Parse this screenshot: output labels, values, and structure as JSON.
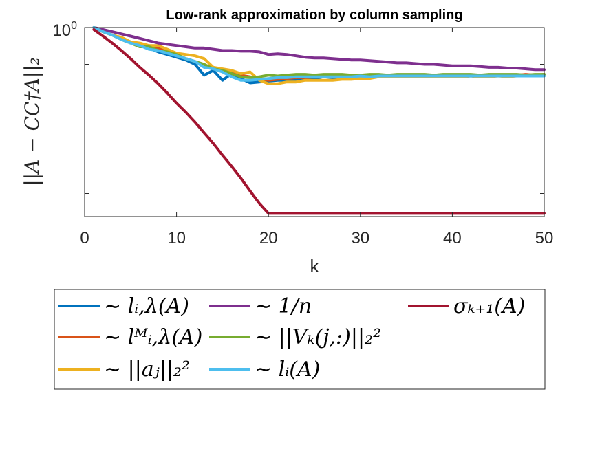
{
  "chart_data": {
    "type": "line",
    "title": "Low-rank approximation by column sampling",
    "xlabel": "k",
    "ylabel": "||A − CC†A||₂",
    "xlim": [
      0,
      50
    ],
    "ylim": [
      0.1,
      1.0
    ],
    "yscale": "log",
    "xticks": [
      0,
      10,
      20,
      30,
      40,
      50
    ],
    "xtick_labels": [
      "0",
      "10",
      "20",
      "30",
      "40",
      "50"
    ],
    "ytick_label_base": "10",
    "ytick_label_exp": "0",
    "legend_position": "below",
    "series": [
      {
        "name": "~ l_{i,λ}(A)",
        "legend_label": "∼ lᵢ,λ(A)",
        "color": "#0072BD",
        "x": [
          1,
          2,
          3,
          4,
          5,
          6,
          7,
          8,
          9,
          10,
          11,
          12,
          13,
          14,
          15,
          16,
          17,
          18,
          19,
          20,
          21,
          22,
          23,
          24,
          25,
          26,
          27,
          28,
          29,
          30,
          31,
          32,
          33,
          34,
          35,
          36,
          37,
          38,
          39,
          40,
          41,
          42,
          43,
          44,
          45,
          46,
          47,
          48,
          49,
          50
        ],
        "y": [
          1.0,
          0.96,
          0.93,
          0.9,
          0.87,
          0.85,
          0.82,
          0.79,
          0.77,
          0.75,
          0.73,
          0.7,
          0.63,
          0.66,
          0.6,
          0.64,
          0.61,
          0.585,
          0.59,
          0.595,
          0.6,
          0.6,
          0.6,
          0.61,
          0.61,
          0.62,
          0.615,
          0.62,
          0.62,
          0.62,
          0.62,
          0.62,
          0.62,
          0.62,
          0.62,
          0.62,
          0.62,
          0.625,
          0.62,
          0.625,
          0.62,
          0.625,
          0.62,
          0.625,
          0.625,
          0.625,
          0.625,
          0.625,
          0.625,
          0.63
        ]
      },
      {
        "name": "~ l^M_{i,λ}(A)",
        "legend_label": "∼ lᴹᵢ,λ(A)",
        "color": "#D95319",
        "x": [
          1,
          2,
          3,
          4,
          5,
          6,
          7,
          8,
          9,
          10,
          11,
          12,
          13,
          14,
          15,
          16,
          17,
          18,
          19,
          20,
          21,
          22,
          23,
          24,
          25,
          26,
          27,
          28,
          29,
          30,
          31,
          32,
          33,
          34,
          35,
          36,
          37,
          38,
          39,
          40,
          41,
          42,
          43,
          44,
          45,
          46,
          47,
          48,
          49,
          50
        ],
        "y": [
          1.0,
          0.96,
          0.93,
          0.9,
          0.87,
          0.85,
          0.84,
          0.82,
          0.79,
          0.76,
          0.74,
          0.72,
          0.69,
          0.67,
          0.655,
          0.645,
          0.63,
          0.62,
          0.61,
          0.6,
          0.605,
          0.61,
          0.615,
          0.615,
          0.62,
          0.62,
          0.62,
          0.62,
          0.62,
          0.62,
          0.62,
          0.625,
          0.62,
          0.625,
          0.625,
          0.625,
          0.625,
          0.625,
          0.625,
          0.625,
          0.625,
          0.625,
          0.625,
          0.63,
          0.63,
          0.63,
          0.63,
          0.635,
          0.63,
          0.635
        ]
      },
      {
        "name": "~ ||a_j||_2^2",
        "legend_label": "∼ ||aⱼ||₂²",
        "color": "#EDB120",
        "x": [
          1,
          2,
          3,
          4,
          5,
          6,
          7,
          8,
          9,
          10,
          11,
          12,
          13,
          14,
          15,
          16,
          17,
          18,
          19,
          20,
          21,
          22,
          23,
          24,
          25,
          26,
          27,
          28,
          29,
          30,
          31,
          32,
          33,
          34,
          35,
          36,
          37,
          38,
          39,
          40,
          41,
          42,
          43,
          44,
          45,
          46,
          47,
          48,
          49,
          50
        ],
        "y": [
          1.0,
          0.96,
          0.93,
          0.91,
          0.87,
          0.86,
          0.84,
          0.84,
          0.81,
          0.78,
          0.77,
          0.76,
          0.74,
          0.68,
          0.67,
          0.66,
          0.64,
          0.65,
          0.6,
          0.58,
          0.58,
          0.59,
          0.59,
          0.6,
          0.6,
          0.6,
          0.6,
          0.605,
          0.605,
          0.61,
          0.61,
          0.62,
          0.62,
          0.62,
          0.62,
          0.62,
          0.62,
          0.62,
          0.62,
          0.62,
          0.62,
          0.625,
          0.62,
          0.62,
          0.625,
          0.62,
          0.625,
          0.625,
          0.625,
          0.63
        ]
      },
      {
        "name": "~ 1/n",
        "legend_label": "∼ 1/n",
        "color": "#7E2F8E",
        "x": [
          1,
          2,
          3,
          4,
          5,
          6,
          7,
          8,
          9,
          10,
          11,
          12,
          13,
          14,
          15,
          16,
          17,
          18,
          19,
          20,
          21,
          22,
          23,
          24,
          25,
          26,
          27,
          28,
          29,
          30,
          31,
          32,
          33,
          34,
          35,
          36,
          37,
          38,
          39,
          40,
          41,
          42,
          43,
          44,
          45,
          46,
          47,
          48,
          49,
          50
        ],
        "y": [
          1.0,
          0.98,
          0.96,
          0.94,
          0.92,
          0.9,
          0.88,
          0.86,
          0.85,
          0.84,
          0.83,
          0.82,
          0.82,
          0.81,
          0.8,
          0.8,
          0.795,
          0.795,
          0.79,
          0.77,
          0.775,
          0.77,
          0.76,
          0.75,
          0.745,
          0.745,
          0.74,
          0.735,
          0.73,
          0.73,
          0.725,
          0.72,
          0.715,
          0.71,
          0.71,
          0.705,
          0.7,
          0.7,
          0.695,
          0.69,
          0.69,
          0.69,
          0.685,
          0.68,
          0.68,
          0.675,
          0.675,
          0.67,
          0.665,
          0.665
        ]
      },
      {
        "name": "~ ||V_k(j,:)||_2^2",
        "legend_label": "∼ ||Vₖ(j,:)||₂²",
        "color": "#77AC30",
        "x": [
          1,
          2,
          3,
          4,
          5,
          6,
          7,
          8,
          9,
          10,
          11,
          12,
          13,
          14,
          15,
          16,
          17,
          18,
          19,
          20,
          21,
          22,
          23,
          24,
          25,
          26,
          27,
          28,
          29,
          30,
          31,
          32,
          33,
          34,
          35,
          36,
          37,
          38,
          39,
          40,
          41,
          42,
          43,
          44,
          45,
          46,
          47,
          48,
          49,
          50
        ],
        "y": [
          1.0,
          0.96,
          0.93,
          0.89,
          0.86,
          0.83,
          0.83,
          0.8,
          0.79,
          0.77,
          0.74,
          0.72,
          0.7,
          0.67,
          0.66,
          0.64,
          0.62,
          0.615,
          0.62,
          0.63,
          0.625,
          0.63,
          0.635,
          0.635,
          0.63,
          0.635,
          0.635,
          0.635,
          0.63,
          0.63,
          0.635,
          0.635,
          0.63,
          0.635,
          0.635,
          0.635,
          0.635,
          0.63,
          0.635,
          0.635,
          0.635,
          0.635,
          0.63,
          0.635,
          0.635,
          0.635,
          0.635,
          0.63,
          0.635,
          0.635
        ]
      },
      {
        "name": "~ l_i(A)",
        "legend_label": "∼ lᵢ(A)",
        "color": "#4DBEEE",
        "x": [
          1,
          2,
          3,
          4,
          5,
          6,
          7,
          8,
          9,
          10,
          11,
          12,
          13,
          14,
          15,
          16,
          17,
          18,
          19,
          20,
          21,
          22,
          23,
          24,
          25,
          26,
          27,
          28,
          29,
          30,
          31,
          32,
          33,
          34,
          35,
          36,
          37,
          38,
          39,
          40,
          41,
          42,
          43,
          44,
          45,
          46,
          47,
          48,
          49,
          50
        ],
        "y": [
          1.0,
          0.96,
          0.93,
          0.89,
          0.86,
          0.84,
          0.81,
          0.8,
          0.78,
          0.76,
          0.74,
          0.72,
          0.68,
          0.67,
          0.65,
          0.62,
          0.6,
          0.6,
          0.605,
          0.61,
          0.615,
          0.615,
          0.62,
          0.62,
          0.62,
          0.62,
          0.62,
          0.62,
          0.62,
          0.625,
          0.62,
          0.625,
          0.625,
          0.625,
          0.625,
          0.625,
          0.625,
          0.625,
          0.625,
          0.625,
          0.625,
          0.625,
          0.625,
          0.625,
          0.625,
          0.625,
          0.625,
          0.625,
          0.625,
          0.625
        ]
      },
      {
        "name": "σ_{k+1}(A)",
        "legend_label": "σₖ₊₁(A)",
        "color": "#A2142F",
        "x": [
          1,
          2,
          3,
          4,
          5,
          6,
          7,
          8,
          9,
          10,
          11,
          12,
          13,
          14,
          15,
          16,
          17,
          18,
          19,
          20,
          21,
          22,
          23,
          24,
          25,
          26,
          27,
          28,
          29,
          30,
          31,
          32,
          33,
          34,
          35,
          36,
          37,
          38,
          39,
          40,
          41,
          42,
          43,
          44,
          45,
          46,
          47,
          48,
          49,
          50
        ],
        "y": [
          0.98,
          0.92,
          0.86,
          0.8,
          0.74,
          0.68,
          0.63,
          0.58,
          0.53,
          0.48,
          0.44,
          0.4,
          0.36,
          0.325,
          0.29,
          0.26,
          0.232,
          0.205,
          0.182,
          0.165,
          0.165,
          0.165,
          0.165,
          0.165,
          0.165,
          0.165,
          0.165,
          0.165,
          0.165,
          0.165,
          0.165,
          0.165,
          0.165,
          0.165,
          0.165,
          0.165,
          0.165,
          0.165,
          0.165,
          0.165,
          0.165,
          0.165,
          0.165,
          0.165,
          0.165,
          0.165,
          0.165,
          0.165,
          0.165,
          0.165
        ]
      }
    ]
  }
}
